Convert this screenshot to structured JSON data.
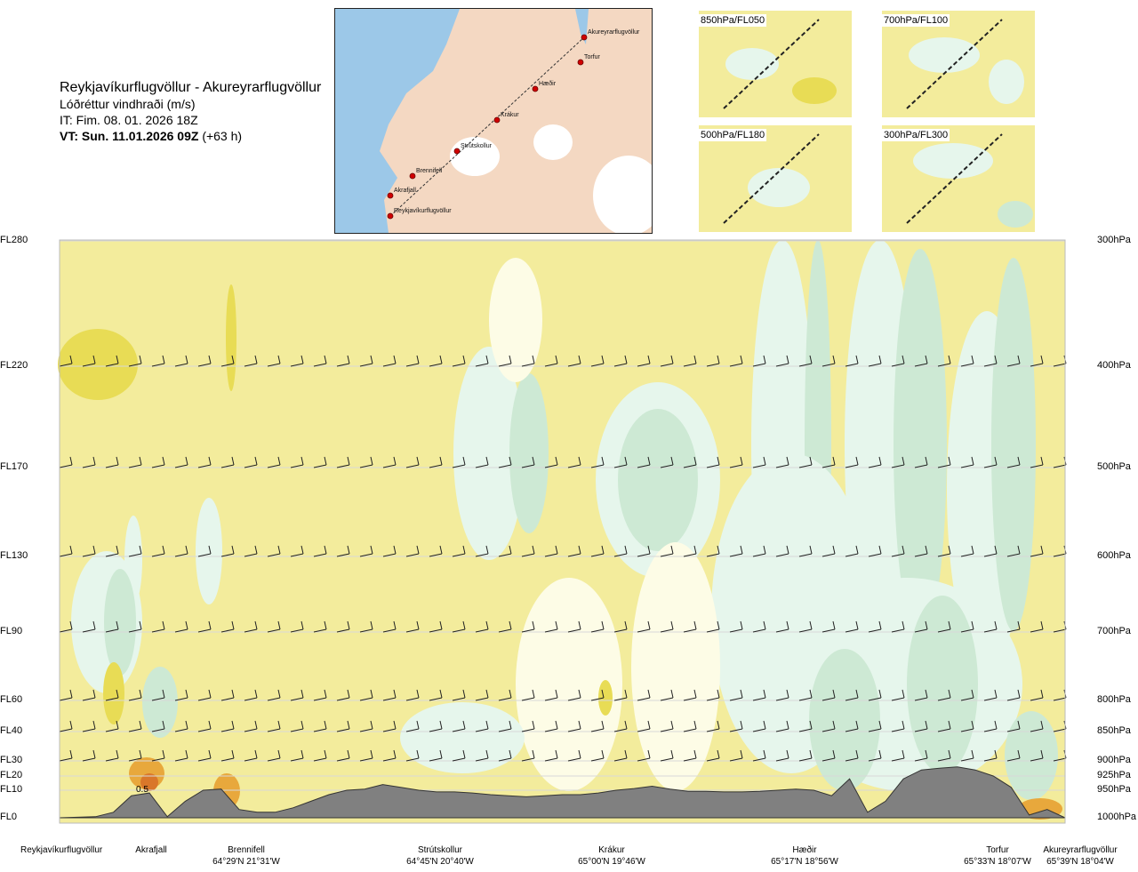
{
  "header": {
    "title": "Reykjavíkurflugvöllur - Akureyrarflugvöllur",
    "parameter": "Lóðréttur vindhraði (m/s)",
    "issue_time": "IT: Fim. 08. 01. 2026 18Z",
    "valid_time": "VT: Sun. 11.01.2026 09Z",
    "lead": "(+63 h)"
  },
  "map": {
    "points": [
      "Akureyrarflugvöllur",
      "Torfur",
      "Hæðir",
      "Krákur",
      "Strútskollur",
      "Brennifell",
      "Akrafjall",
      "Reykjavíkurflugvöllur"
    ]
  },
  "mini_maps": [
    {
      "label": "850hPa/FL050"
    },
    {
      "label": "700hPa/FL100"
    },
    {
      "label": "500hPa/FL180"
    },
    {
      "label": "300hPa/FL300"
    }
  ],
  "levels": [
    {
      "fl": "FL280",
      "hpa": "300hPa"
    },
    {
      "fl": "FL220",
      "hpa": "400hPa"
    },
    {
      "fl": "FL170",
      "hpa": "500hPa"
    },
    {
      "fl": "FL130",
      "hpa": "600hPa"
    },
    {
      "fl": "FL90",
      "hpa": "700hPa"
    },
    {
      "fl": "FL60",
      "hpa": "800hPa"
    },
    {
      "fl": "FL40",
      "hpa": "850hPa"
    },
    {
      "fl": "FL30",
      "hpa": "900hPa"
    },
    {
      "fl": "FL20",
      "hpa": "925hPa"
    },
    {
      "fl": "FL10",
      "hpa": "950hPa"
    },
    {
      "fl": "FL0",
      "hpa": "1000hPa"
    }
  ],
  "locations": [
    {
      "name": "Reykjavíkurflugvöllur",
      "coord": ""
    },
    {
      "name": "Akrafjall",
      "coord": ""
    },
    {
      "name": "Brennifell",
      "coord": "64°29'N 21°31'W"
    },
    {
      "name": "Strútskollur",
      "coord": "64°45'N 20°40'W"
    },
    {
      "name": "Krákur",
      "coord": "65°00'N 19°46'W"
    },
    {
      "name": "Hæðir",
      "coord": "65°17'N 18°56'W"
    },
    {
      "name": "Torfur",
      "coord": "65°33'N 18°07'W"
    },
    {
      "name": "Akureyrarflugvöllur",
      "coord": "65°39'N 18°04'W"
    }
  ],
  "annotations": [
    {
      "text": "0.5"
    }
  ],
  "colors": {
    "downdraft_weak": "#f3ec9c",
    "downdraft_mod": "#e8dc55",
    "downdraft_strong": "#e8a83c",
    "downdraft_vstrong": "#d9772a",
    "neutral": "#fdfce6",
    "updraft_weak": "#e6f6ec",
    "updraft_mod": "#cde9d4",
    "terrain": "#808080"
  },
  "chart_data": {
    "type": "heatmap",
    "title": "Lóðréttur vindhraði (m/s)",
    "x_locations": [
      "Reykjavíkurflugvöllur",
      "Akrafjall",
      "Brennifell",
      "Strútskollur",
      "Krákur",
      "Hæðir",
      "Torfur",
      "Akureyrarflugvöllur"
    ],
    "y_levels_hPa": [
      1000,
      950,
      925,
      900,
      850,
      800,
      700,
      600,
      500,
      400,
      300
    ],
    "y_levels_FL": [
      "FL0",
      "FL10",
      "FL20",
      "FL30",
      "FL40",
      "FL60",
      "FL90",
      "FL130",
      "FL170",
      "FL220",
      "FL280"
    ],
    "terrain_profile_hPa": [
      1000,
      999,
      998,
      990,
      960,
      955,
      998,
      970,
      950,
      948,
      985,
      990,
      990,
      982,
      970,
      958,
      950,
      948,
      940,
      945,
      950,
      953,
      953,
      955,
      958,
      960,
      962,
      960,
      958,
      958,
      955,
      950,
      947,
      943,
      948,
      952,
      952,
      953,
      953,
      952,
      950,
      948,
      950,
      960,
      930,
      990,
      970,
      930,
      915,
      912,
      910,
      915,
      925,
      945,
      995,
      985,
      1000
    ],
    "contour_label": "0.5",
    "grid": false
  }
}
